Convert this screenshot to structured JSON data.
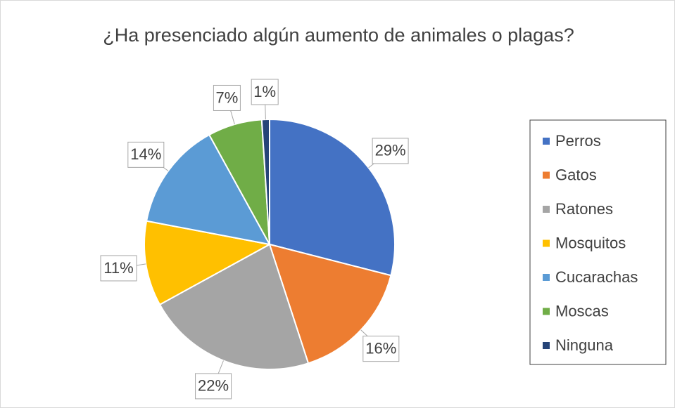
{
  "chart_data": {
    "type": "pie",
    "title": "¿Ha presenciado algún aumento de animales o plagas?",
    "categories": [
      "Perros",
      "Gatos",
      "Ratones",
      "Mosquitos",
      "Cucarachas",
      "Moscas",
      "Ninguna"
    ],
    "values": [
      29,
      16,
      22,
      11,
      14,
      7,
      1
    ],
    "value_labels": [
      "29%",
      "16%",
      "22%",
      "11%",
      "14%",
      "7%",
      "1%"
    ],
    "colors": [
      "#4472c4",
      "#ed7d31",
      "#a5a5a5",
      "#ffc000",
      "#5b9bd5",
      "#70ad47",
      "#264478"
    ],
    "legend": "right"
  }
}
